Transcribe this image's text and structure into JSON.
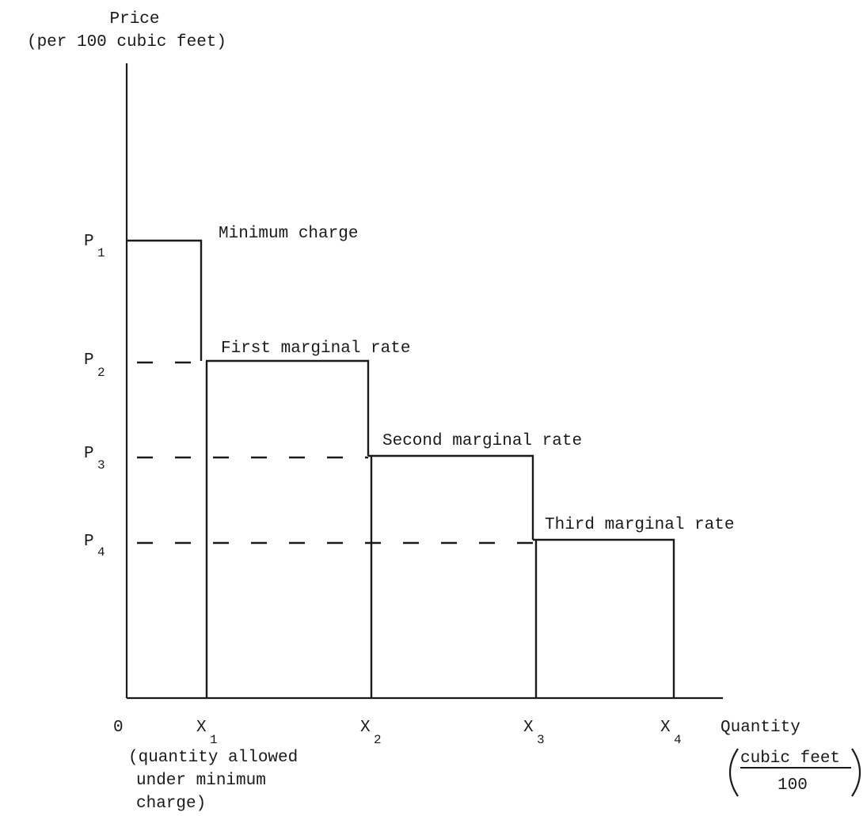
{
  "chart_data": {
    "type": "line",
    "ylabel": [
      "Price",
      "(per 100 cubic feet)"
    ],
    "xlabel": "Quantity",
    "xlabel_unit": {
      "numerator": "cubic feet",
      "denominator": "100"
    },
    "origin_label": "0",
    "x_ticks": [
      {
        "letter": "X",
        "sub": "1"
      },
      {
        "letter": "X",
        "sub": "2"
      },
      {
        "letter": "X",
        "sub": "3"
      },
      {
        "letter": "X",
        "sub": "4"
      }
    ],
    "x1_note": [
      "(quantity allowed",
      "under minimum",
      "charge)"
    ],
    "y_ticks": [
      {
        "letter": "P",
        "sub": "1"
      },
      {
        "letter": "P",
        "sub": "2"
      },
      {
        "letter": "P",
        "sub": "3"
      },
      {
        "letter": "P",
        "sub": "4"
      }
    ],
    "series": [
      {
        "values": [
          {
            "x_start": 0,
            "x_end": 1,
            "price_level": 1,
            "label": "Minimum charge"
          },
          {
            "x_start": 1,
            "x_end": 2,
            "price_level": 2,
            "label": "First marginal rate"
          },
          {
            "x_start": 2,
            "x_end": 3,
            "price_level": 3,
            "label": "Second marginal rate"
          },
          {
            "x_start": 3,
            "x_end": 4,
            "price_level": 4,
            "label": "Third marginal rate"
          }
        ]
      }
    ],
    "dashed_guides": true,
    "grid": false
  }
}
